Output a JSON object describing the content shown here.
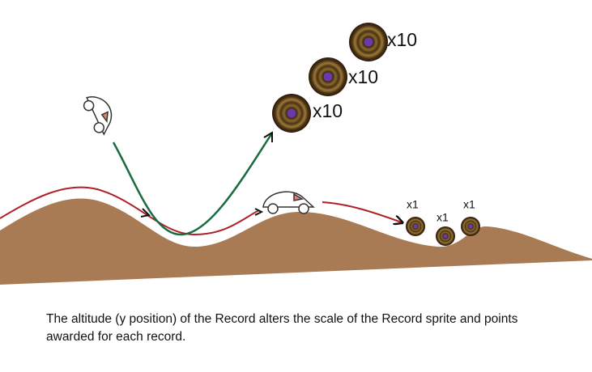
{
  "records": [
    {
      "label": "x10"
    },
    {
      "label": "x10"
    },
    {
      "label": "x10"
    },
    {
      "label": "x1"
    },
    {
      "label": "x1"
    },
    {
      "label": "x1"
    }
  ],
  "caption": {
    "lines": [
      "The altitude (y position) of the Record alters the scale of the Record sprite and points",
      "awarded for each record."
    ]
  }
}
